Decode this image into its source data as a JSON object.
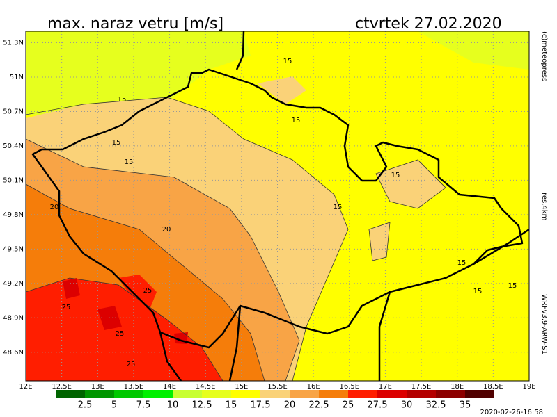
{
  "header": {
    "title": "max. naraz vetru [m/s]",
    "date": "ctvrtek 27.02.2020"
  },
  "map": {
    "lonlim": [
      12,
      19
    ],
    "latlim": [
      48.35,
      51.4
    ],
    "grid": true,
    "lonticks": [
      {
        "value": 12,
        "label": "12E"
      },
      {
        "value": 12.5,
        "label": "12.5E"
      },
      {
        "value": 13,
        "label": "13E"
      },
      {
        "value": 13.5,
        "label": "13.5E"
      },
      {
        "value": 14,
        "label": "14E"
      },
      {
        "value": 14.5,
        "label": "14.5E"
      },
      {
        "value": 15,
        "label": "15E"
      },
      {
        "value": 15.5,
        "label": "15.5E"
      },
      {
        "value": 16,
        "label": "16E"
      },
      {
        "value": 16.5,
        "label": "16.5E"
      },
      {
        "value": 17,
        "label": "17E"
      },
      {
        "value": 17.5,
        "label": "17.5E"
      },
      {
        "value": 18,
        "label": "18E"
      },
      {
        "value": 18.5,
        "label": "18.5E"
      },
      {
        "value": 19,
        "label": "19E"
      }
    ],
    "latticks": [
      {
        "value": 51.3,
        "label": "51.3N"
      },
      {
        "value": 51,
        "label": "51N"
      },
      {
        "value": 50.7,
        "label": "50.7N"
      },
      {
        "value": 50.4,
        "label": "50.4N"
      },
      {
        "value": 50.1,
        "label": "50.1N"
      },
      {
        "value": 49.8,
        "label": "49.8N"
      },
      {
        "value": 49.5,
        "label": "49.5N"
      },
      {
        "value": 49.2,
        "label": "49.2N"
      },
      {
        "value": 48.9,
        "label": "48.9N"
      },
      {
        "value": 48.6,
        "label": "48.6N"
      }
    ],
    "contour_labels": [
      "15",
      "15",
      "15",
      "15",
      "15",
      "15",
      "15",
      "15",
      "15",
      "15",
      "20",
      "20",
      "25",
      "25",
      "25",
      "25"
    ]
  },
  "colorbar": {
    "levels": [
      2.5,
      5,
      7.5,
      10,
      12.5,
      15,
      17.5,
      20,
      22.5,
      25,
      27.5,
      30,
      32.5,
      35
    ],
    "colors": [
      "#006400",
      "#009600",
      "#00c800",
      "#00f000",
      "#c8ff32",
      "#e6ff1e",
      "#ffff00",
      "#fad278",
      "#f8a446",
      "#f57d0a",
      "#ff1e00",
      "#dc0000",
      "#b40000",
      "#8c0000",
      "#500000"
    ]
  },
  "credits": {
    "copyright": "(c)meteopress",
    "resolution": "res.4km",
    "model": "WRFv3.9-ARW-S1",
    "run": "2020-02-26-16:58"
  }
}
